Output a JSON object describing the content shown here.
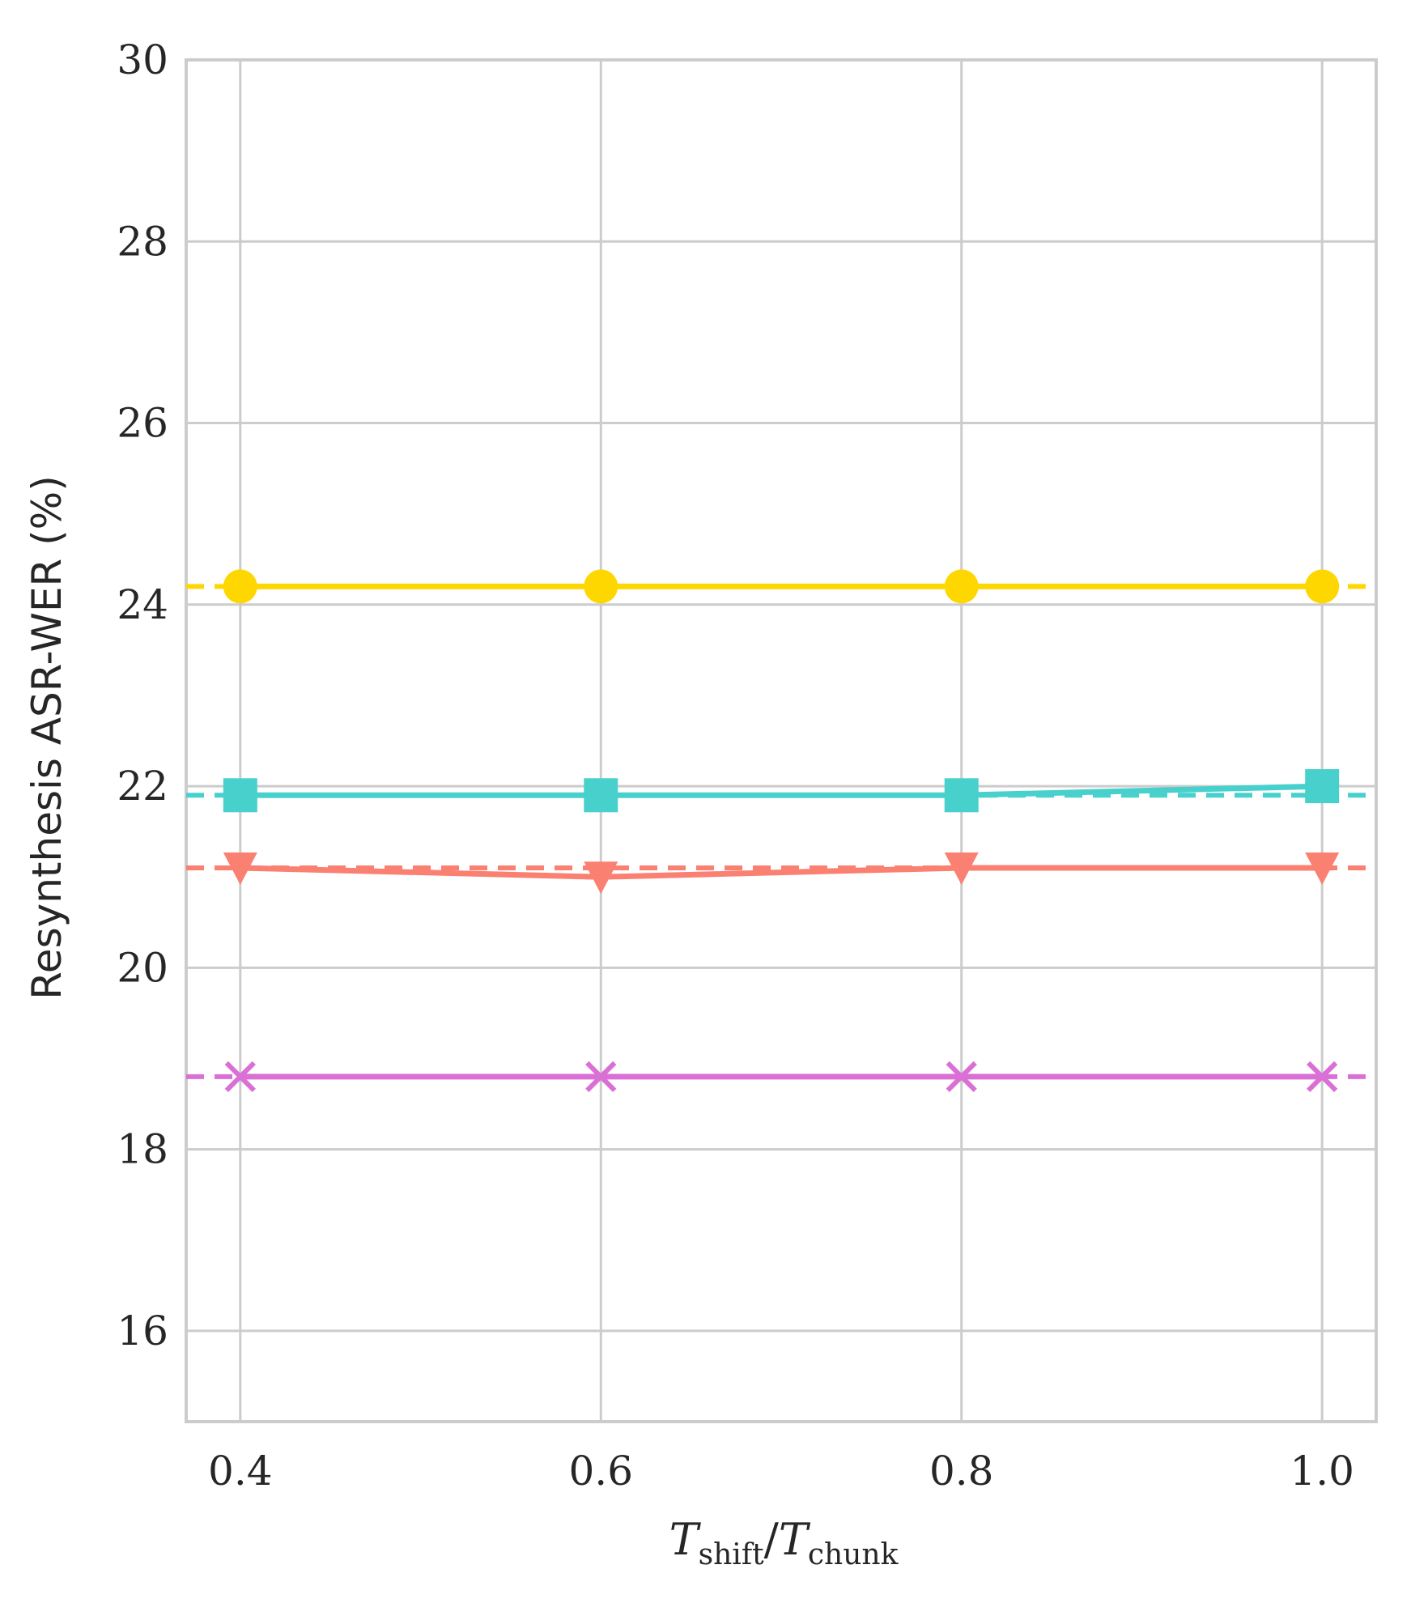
{
  "chart_data": {
    "type": "line",
    "xlabel": {
      "base1": "T",
      "sub1": "shift",
      "separator": "/",
      "base2": "T",
      "sub2": "chunk"
    },
    "ylabel": "Resynthesis ASR-WER (%)",
    "x": [
      0.4,
      0.6,
      0.8,
      1.0
    ],
    "x_tick_labels": [
      "0.4",
      "0.6",
      "0.8",
      "1.0"
    ],
    "xlim": [
      0.37,
      1.03
    ],
    "y_ticks": [
      16,
      18,
      20,
      22,
      24,
      26,
      28,
      30
    ],
    "y_tick_labels": [
      "16",
      "18",
      "20",
      "22",
      "24",
      "26",
      "28",
      "30"
    ],
    "ylim": [
      15,
      30
    ],
    "grid": true,
    "series": [
      {
        "values": [
          24.2,
          24.2,
          24.2,
          24.2
        ],
        "marker": "circle",
        "color": "#FFD700",
        "baseline": 24.2
      },
      {
        "values": [
          21.9,
          21.9,
          21.9,
          22.0
        ],
        "marker": "square",
        "color": "#48D1CC",
        "baseline": 21.9
      },
      {
        "values": [
          21.1,
          21.0,
          21.1,
          21.1
        ],
        "marker": "triangle-down",
        "color": "#FA8072",
        "baseline": 21.1
      },
      {
        "values": [
          18.8,
          18.8,
          18.8,
          18.8
        ],
        "marker": "x",
        "color": "#DA70D6",
        "baseline": 18.8
      }
    ]
  }
}
